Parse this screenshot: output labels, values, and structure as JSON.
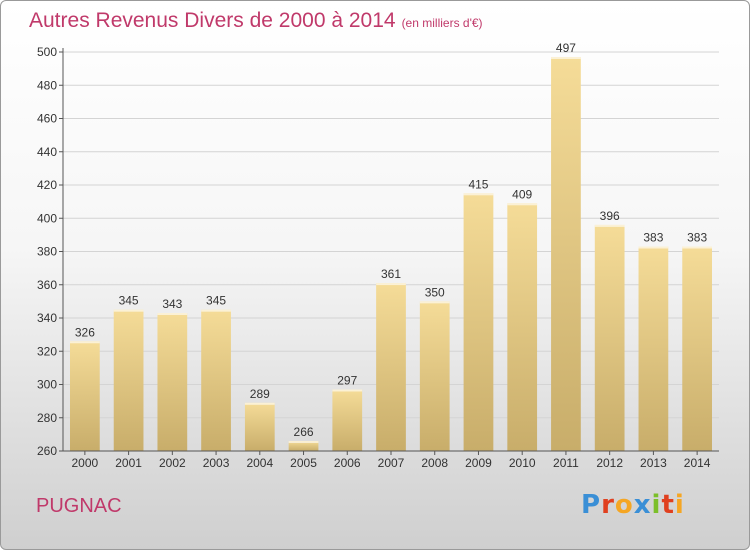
{
  "header": {
    "title": "Autres Revenus Divers de 2000 à 2014",
    "subtitle": "(en milliers d'€)"
  },
  "footer": {
    "commune": "PUGNAC",
    "logo_text": "Proxiti",
    "logo_letters": [
      {
        "ch": "P",
        "color": "#3a8fd6"
      },
      {
        "ch": "r",
        "color": "#e0401f"
      },
      {
        "ch": "o",
        "color": "#f5a623"
      },
      {
        "ch": "x",
        "color": "#3a8fd6"
      },
      {
        "ch": "i",
        "color": "#7cbf2a"
      },
      {
        "ch": "t",
        "color": "#e0401f"
      },
      {
        "ch": "i",
        "color": "#f5a623"
      }
    ]
  },
  "chart_data": {
    "type": "bar",
    "title": "Autres Revenus Divers de 2000 à 2014",
    "subtitle": "(en milliers d'€)",
    "categories": [
      "2000",
      "2001",
      "2002",
      "2003",
      "2004",
      "2005",
      "2006",
      "2007",
      "2008",
      "2009",
      "2010",
      "2011",
      "2012",
      "2013",
      "2014"
    ],
    "values": [
      326,
      345,
      343,
      345,
      289,
      266,
      297,
      361,
      350,
      415,
      409,
      497,
      396,
      383,
      383
    ],
    "ylim": [
      260,
      500
    ],
    "yticks": [
      260,
      280,
      300,
      320,
      340,
      360,
      380,
      400,
      420,
      440,
      460,
      480,
      500
    ],
    "grid": true,
    "colors": {
      "bar_top": "#f5dc98",
      "bar_bottom": "#c8ad6a",
      "grid": "#d4d4d4",
      "axis": "#555555",
      "text": "#333333",
      "title": "#c0396a"
    }
  }
}
